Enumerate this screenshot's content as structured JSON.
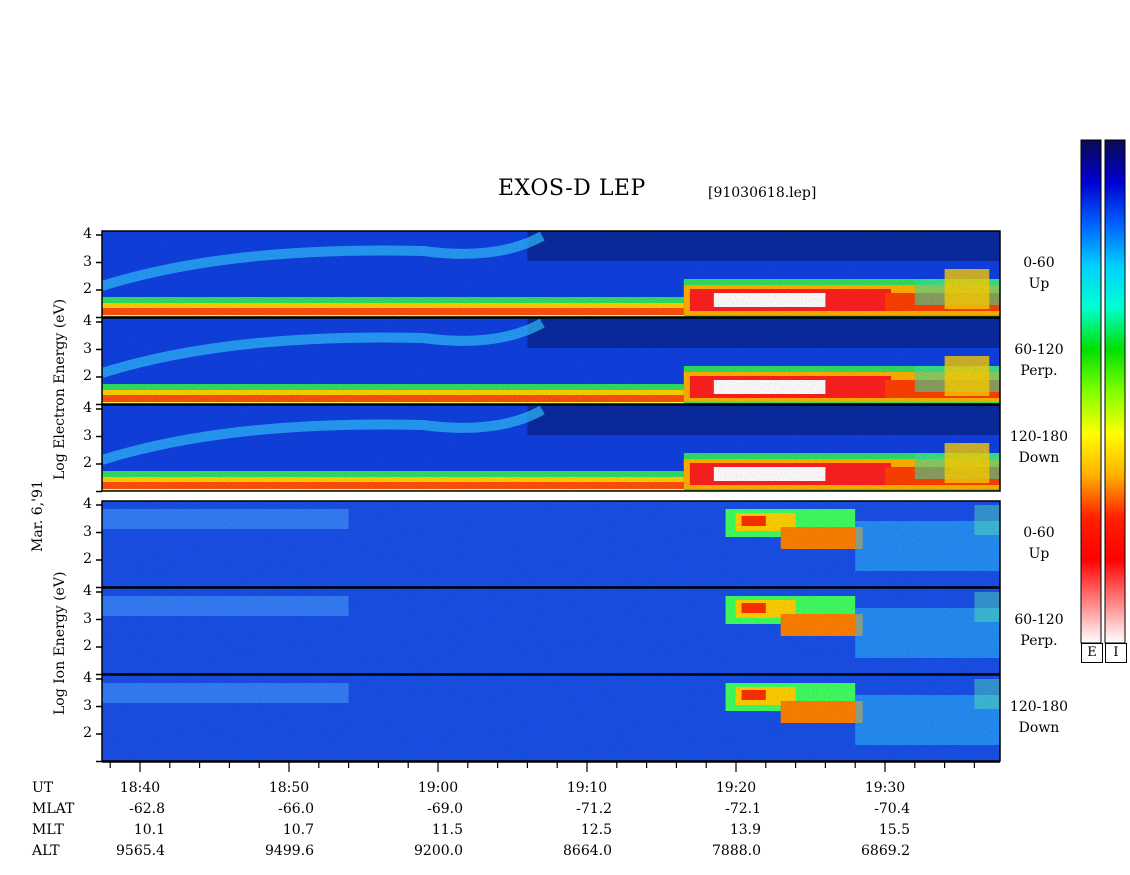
{
  "header": {
    "title": "EXOS-D LEP",
    "filename": "[91030618.lep]"
  },
  "date_label": "Mar. 6,'91",
  "electron_ylabel": "Log  Electron  Energy (eV)",
  "ion_ylabel": "Log  Ion  Energy (eV)",
  "y_ticks": [
    "4",
    "3",
    "2"
  ],
  "panels": [
    {
      "species": "electron",
      "pitch": "0-60",
      "dir": "Up"
    },
    {
      "species": "electron",
      "pitch": "60-120",
      "dir": "Perp."
    },
    {
      "species": "electron",
      "pitch": "120-180",
      "dir": "Down"
    },
    {
      "species": "ion",
      "pitch": "0-60",
      "dir": "Up"
    },
    {
      "species": "ion",
      "pitch": "60-120",
      "dir": "Perp."
    },
    {
      "species": "ion",
      "pitch": "120-180",
      "dir": "Down"
    }
  ],
  "colorbar": {
    "labels": [
      "E",
      "I"
    ],
    "colors": [
      "#0a0a50",
      "#0000d0",
      "#0060ff",
      "#00d0ff",
      "#00ffd0",
      "#00e000",
      "#80ff00",
      "#ffff00",
      "#ffb000",
      "#ff2000",
      "#ff0000",
      "#ff8080",
      "#ffffff"
    ]
  },
  "ephemeris": {
    "row_names": [
      "UT",
      "MLAT",
      "MLT",
      "ALT"
    ],
    "columns": [
      {
        "ut": "18:40",
        "mlat": "-62.8",
        "mlt": "10.1",
        "alt": "9565.4"
      },
      {
        "ut": "18:50",
        "mlat": "-66.0",
        "mlt": "10.7",
        "alt": "9499.6"
      },
      {
        "ut": "19:00",
        "mlat": "-69.0",
        "mlt": "11.5",
        "alt": "9200.0"
      },
      {
        "ut": "19:10",
        "mlat": "-71.2",
        "mlt": "12.5",
        "alt": "8664.0"
      },
      {
        "ut": "19:20",
        "mlat": "-72.1",
        "mlt": "13.9",
        "alt": "7888.0"
      },
      {
        "ut": "19:30",
        "mlat": "-70.4",
        "mlt": "15.5",
        "alt": "6869.2"
      }
    ]
  },
  "chart_data": {
    "type": "heatmap",
    "title": "EXOS-D LEP",
    "x": [
      "18:40",
      "18:50",
      "19:00",
      "19:10",
      "19:20",
      "19:30"
    ],
    "xlabel": "UT",
    "ylabel_electron": "Log Electron Energy (eV)",
    "ylabel_ion": "Log Ion Energy (eV)",
    "ylim": [
      1,
      4
    ],
    "series": [
      {
        "name": "0-60 Up",
        "species": "electron"
      },
      {
        "name": "60-120 Perp.",
        "species": "electron"
      },
      {
        "name": "120-180 Down",
        "species": "electron"
      },
      {
        "name": "0-60 Up",
        "species": "ion"
      },
      {
        "name": "60-120 Perp.",
        "species": "ion"
      },
      {
        "name": "120-180 Down",
        "species": "ion"
      }
    ]
  }
}
